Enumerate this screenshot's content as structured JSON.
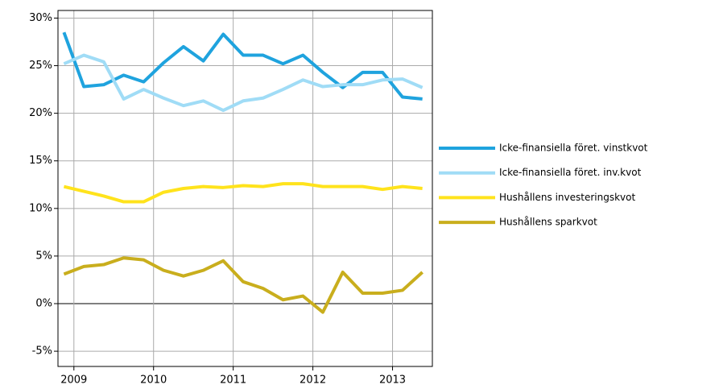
{
  "chart_data": {
    "type": "line",
    "x": [
      2008.875,
      2009.125,
      2009.375,
      2009.625,
      2009.875,
      2010.125,
      2010.375,
      2010.625,
      2010.875,
      2011.125,
      2011.375,
      2011.625,
      2011.875,
      2012.125,
      2012.375,
      2012.625,
      2012.875,
      2013.125,
      2013.375
    ],
    "series": [
      {
        "name": "Icke-finansiella föret. vinstkvot",
        "color": "#1fa3de",
        "values": [
          28.5,
          22.8,
          23,
          24,
          23.3,
          25.3,
          27,
          25.5,
          28.3,
          26.1,
          26.1,
          25.2,
          26.1,
          24.3,
          22.7,
          24.3,
          24.3,
          21.7,
          21.5
        ]
      },
      {
        "name": "Icke-finansiella föret. inv.kvot",
        "color": "#a0dcf6",
        "values": [
          25.2,
          26.1,
          25.4,
          21.5,
          22.5,
          21.6,
          20.8,
          21.3,
          20.3,
          21.3,
          21.6,
          22.5,
          23.5,
          22.8,
          23,
          23,
          23.5,
          23.6,
          22.7
        ]
      },
      {
        "name": "Hushållens investeringskvot",
        "color": "#ffe31c",
        "values": [
          12.3,
          11.8,
          11.3,
          10.7,
          10.7,
          11.7,
          12.1,
          12.3,
          12.2,
          12.4,
          12.3,
          12.6,
          12.6,
          12.3,
          12.3,
          12.3,
          12,
          12.3,
          12.1
        ]
      },
      {
        "name": "Hushållens sparkvot",
        "color": "#c9ae1d",
        "values": [
          3.1,
          3.9,
          4.1,
          4.8,
          4.6,
          3.5,
          2.9,
          3.5,
          4.5,
          2.3,
          1.6,
          0.4,
          0.8,
          -0.9,
          3.3,
          1.1,
          1.1,
          1.4,
          3.3
        ]
      }
    ],
    "xlim": [
      2008.8,
      2013.5
    ],
    "xticks": [
      2009,
      2010,
      2011,
      2012,
      2013
    ],
    "ylim": [
      -6.6,
      30.8
    ],
    "yticks": [
      {
        "value": -5,
        "label": "-5%"
      },
      {
        "value": 0,
        "label": "0%"
      },
      {
        "value": 5,
        "label": "5%"
      },
      {
        "value": 10,
        "label": "10%"
      },
      {
        "value": 15,
        "label": "15%"
      },
      {
        "value": 20,
        "label": "20%"
      },
      {
        "value": 25,
        "label": "25%"
      },
      {
        "value": 30,
        "label": "30%"
      }
    ],
    "grid": true,
    "legend": "right"
  }
}
